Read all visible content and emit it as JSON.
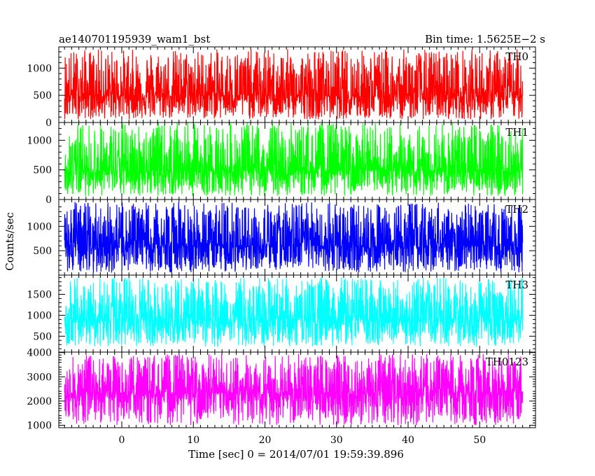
{
  "chart_data": {
    "type": "line",
    "title_left": "ae140701195939_wam1_bst",
    "title_right": "Bin time: 1.5625E−2 s",
    "xlabel": "Time [sec] 0 = 2014/07/01 19:59:39.896",
    "ylabel": "Counts/sec",
    "xlim": [
      -8.8,
      57.8
    ],
    "x_range": [
      -8.0,
      56.0
    ],
    "x_ticks": [
      0,
      10,
      20,
      30,
      40,
      50
    ],
    "x_tick_labels": [
      "0",
      "10",
      "20",
      "30",
      "40",
      "50"
    ],
    "grid": false,
    "panels": [
      {
        "name": "TH0",
        "color": "#ff0000",
        "ylim": [
          0,
          1390
        ],
        "y_ticks": [
          0,
          500,
          1000
        ],
        "y_tick_labels": [
          "0",
          "500",
          "1000"
        ],
        "mean": 500,
        "min": 60,
        "max": 1350
      },
      {
        "name": "TH1",
        "color": "#00ff00",
        "ylim": [
          0,
          1300
        ],
        "y_ticks": [
          0,
          500,
          1000
        ],
        "y_tick_labels": [
          "0",
          "500",
          "1000"
        ],
        "mean": 480,
        "min": 60,
        "max": 1300
      },
      {
        "name": "TH2",
        "color": "#0000ff",
        "ylim": [
          0,
          1550
        ],
        "y_ticks": [
          500,
          1000
        ],
        "y_tick_labels": [
          "500",
          "1000"
        ],
        "mean": 600,
        "min": 50,
        "max": 1500
      },
      {
        "name": "TH3",
        "color": "#00ffff",
        "ylim": [
          120,
          1960
        ],
        "y_ticks": [
          500,
          1000,
          1500
        ],
        "y_tick_labels": [
          "500",
          "1000",
          "1500"
        ],
        "mean": 900,
        "min": 250,
        "max": 1900
      },
      {
        "name": "TH0123",
        "color": "#ff00ff",
        "ylim": [
          900,
          4020
        ],
        "y_ticks": [
          1000,
          2000,
          3000,
          4000
        ],
        "y_tick_labels": [
          "1000",
          "2000",
          "3000",
          "4000"
        ],
        "mean": 2300,
        "min": 1000,
        "max": 3950
      }
    ]
  }
}
